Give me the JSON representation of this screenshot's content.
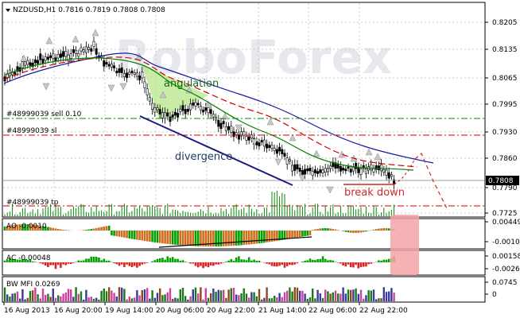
{
  "main": {
    "symbol_label": "NZDUSD,H1  0.7816 0.7819 0.7808 0.7808",
    "watermark": "RoboForex",
    "price_ticks": [
      "0.8205",
      "0.8135",
      "0.8065",
      "0.7995",
      "0.7930",
      "0.7860",
      "0.7790",
      "0.7725"
    ],
    "current_price": "0.7808",
    "levels": {
      "sell": "#48999039 sell 0.10",
      "sl": "#48999039 sl",
      "tp": "#48999039 tp"
    },
    "annotations": {
      "angulation": "angulation",
      "divergence": "divergence",
      "break_down": "break down"
    }
  },
  "ao": {
    "label": "AO -0.0010",
    "ticks": [
      "0.00449",
      "-0.00105"
    ]
  },
  "ac": {
    "label": "AC -0.00048",
    "ticks": [
      "0.001585",
      "-0.00260"
    ]
  },
  "mfi": {
    "label": "BW MFI 0.0269",
    "ticks": [
      "0.0745",
      "0"
    ]
  },
  "time_ticks": [
    "16 Aug 2013",
    "16 Aug 20:00",
    "19 Aug 14:00",
    "20 Aug 06:00",
    "20 Aug 22:00",
    "21 Aug 14:00",
    "22 Aug 06:00",
    "22 Aug 22:00"
  ],
  "colors": {
    "grid": "#c8c8c8",
    "candles": "#000000",
    "green_ma": "#008000",
    "red_ma": "#cc0000",
    "blue_ma": "#1a1aa0",
    "angulation": "#b7e58a",
    "divergence_line": "#1a1a80",
    "break_down": "#cc2a2a",
    "ao_red": "#cc6d1c",
    "ao_green": "#00a000",
    "ac_red": "#dd2222",
    "ac_green": "#00a000",
    "highlight": "#f4a3a8"
  }
}
